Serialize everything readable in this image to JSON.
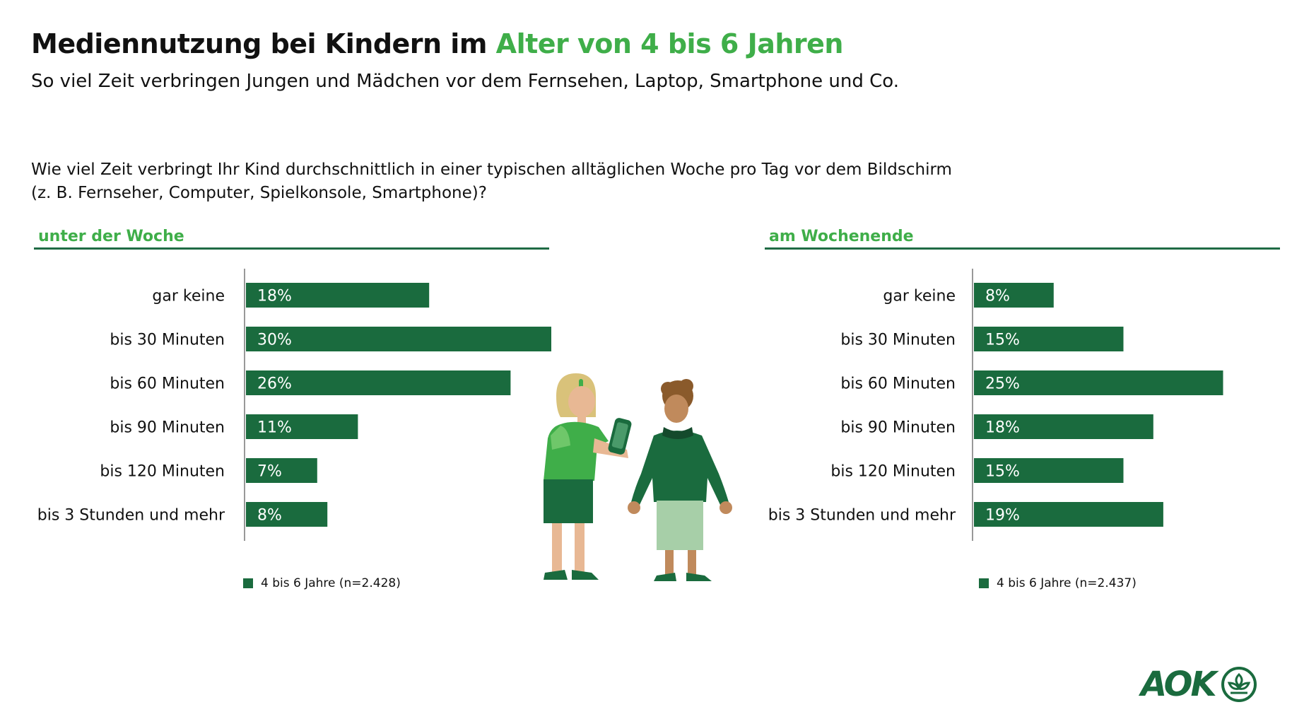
{
  "header": {
    "title_main": "Mediennutzung bei Kindern im",
    "title_accent": "Alter von 4 bis 6 Jahren",
    "subtitle": "So viel Zeit verbringen Jungen und Mädchen vor dem Fernsehen, Laptop, Smartphone und Co.",
    "question_line1": "Wie viel Zeit verbringt Ihr Kind durchschnittlich in einer typischen alltäglichen Woche pro Tag vor dem Bildschirm",
    "question_line2": "(z. B. Fernseher, Computer, Spielkonsole, Smartphone)?"
  },
  "colors": {
    "bar": "#1a6b3e",
    "accent_green": "#3fae49",
    "axis": "#999999"
  },
  "chart_data": [
    {
      "type": "bar",
      "orientation": "horizontal",
      "title": "unter der Woche",
      "categories": [
        "gar keine",
        "bis 30 Minuten",
        "bis 60 Minuten",
        "bis 90 Minuten",
        "bis 120 Minuten",
        "bis 3 Stunden und mehr"
      ],
      "series": [
        {
          "name": "4 bis 6 Jahre (n=2.428)",
          "values": [
            18,
            30,
            26,
            11,
            7,
            8
          ]
        }
      ],
      "value_labels": [
        "18%",
        "30%",
        "26%",
        "11%",
        "7%",
        "8%"
      ],
      "unit": "%",
      "xlim": [
        0,
        30
      ],
      "legend": "4 bis 6 Jahre (n=2.428)",
      "legend_position": "bottom-left"
    },
    {
      "type": "bar",
      "orientation": "horizontal",
      "title": "am Wochenende",
      "categories": [
        "gar keine",
        "bis 30 Minuten",
        "bis 60 Minuten",
        "bis 90 Minuten",
        "bis 120 Minuten",
        "bis 3 Stunden und mehr"
      ],
      "series": [
        {
          "name": "4 bis 6 Jahre (n=2.437)",
          "values": [
            8,
            15,
            25,
            18,
            15,
            19
          ]
        }
      ],
      "value_labels": [
        "8%",
        "15%",
        "25%",
        "18%",
        "15%",
        "19%"
      ],
      "unit": "%",
      "xlim": [
        0,
        30
      ],
      "legend": "4 bis 6 Jahre (n=2.437)",
      "legend_position": "bottom-left"
    }
  ],
  "illustration": {
    "icon": "children-with-smartphone-illustration"
  },
  "logo": {
    "wordmark": "AOK",
    "icon": "aok-tree-emblem-icon"
  }
}
